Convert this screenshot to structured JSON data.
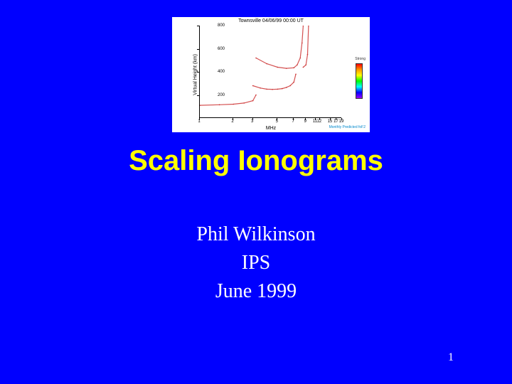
{
  "slide": {
    "title": "Scaling Ionograms",
    "author": "Phil Wilkinson",
    "organization": "IPS",
    "date": "June 1999",
    "page_number": "1",
    "background_color": "#0000ff",
    "title_color": "#ffff00",
    "text_color": "#ffffff",
    "title_fontsize": 40,
    "body_fontsize": 28
  },
  "chart": {
    "type": "ionogram",
    "title": "Townsville 04/06/99 00:00 UT",
    "xlabel": "MHz",
    "ylabel": "Virtual Height (km)",
    "xlim": [
      1,
      19
    ],
    "ylim": [
      0,
      800
    ],
    "yticks": [
      200,
      400,
      600,
      800
    ],
    "xticks": [
      1,
      2,
      3,
      5,
      7,
      9,
      11,
      12,
      15,
      17,
      19
    ],
    "background_color": "#ffffff",
    "trace_color": "#cc3333",
    "colorbar_label": "Strong",
    "colorbar_colors": [
      "#ff0000",
      "#ff9900",
      "#ffff00",
      "#00ff00",
      "#00ffff",
      "#0000ff",
      "#9900ff"
    ],
    "footer": "Monthly Predicted foF2",
    "footer_color": "#0088cc",
    "title_fontsize": 7,
    "label_fontsize": 7,
    "tick_fontsize": 6,
    "traces": [
      {
        "type": "E",
        "points": [
          [
            1,
            110
          ],
          [
            1.5,
            115
          ],
          [
            2,
            120
          ],
          [
            2.5,
            130
          ],
          [
            3,
            150
          ],
          [
            3.2,
            200
          ]
        ]
      },
      {
        "type": "F1",
        "points": [
          [
            3,
            280
          ],
          [
            3.5,
            260
          ],
          [
            4,
            250
          ],
          [
            4.5,
            248
          ],
          [
            5,
            250
          ],
          [
            5.5,
            255
          ],
          [
            6,
            265
          ],
          [
            6.5,
            280
          ],
          [
            7,
            310
          ],
          [
            7.3,
            380
          ]
        ]
      },
      {
        "type": "F2",
        "points": [
          [
            3.2,
            520
          ],
          [
            4,
            470
          ],
          [
            5,
            440
          ],
          [
            6,
            430
          ],
          [
            7,
            435
          ],
          [
            7.5,
            460
          ],
          [
            8,
            520
          ],
          [
            8.3,
            650
          ],
          [
            8.5,
            800
          ]
        ]
      },
      {
        "type": "F2x",
        "points": [
          [
            8.5,
            440
          ],
          [
            9,
            460
          ],
          [
            9.3,
            550
          ],
          [
            9.5,
            800
          ]
        ]
      }
    ]
  }
}
